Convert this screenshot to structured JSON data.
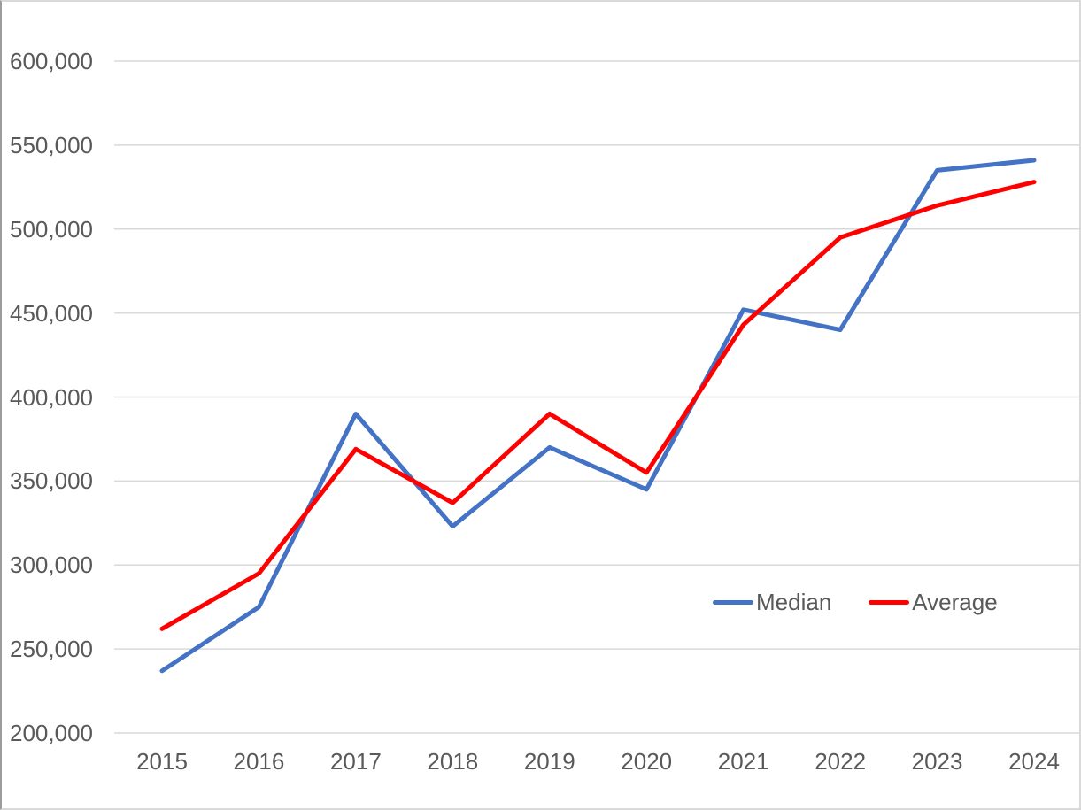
{
  "chart_data": {
    "type": "line",
    "categories": [
      "2015",
      "2016",
      "2017",
      "2018",
      "2019",
      "2020",
      "2021",
      "2022",
      "2023",
      "2024"
    ],
    "series": [
      {
        "name": "Median",
        "color": "#4472C4",
        "values": [
          237000,
          275000,
          390000,
          323000,
          370000,
          345000,
          452000,
          440000,
          535000,
          541000
        ]
      },
      {
        "name": "Average",
        "color": "#FF0000",
        "values": [
          262000,
          295000,
          369000,
          337000,
          390000,
          355000,
          443000,
          495000,
          514000,
          528000
        ]
      }
    ],
    "title": "",
    "xlabel": "",
    "ylabel": "",
    "ylim": [
      200000,
      600000
    ],
    "ytick_step": 50000,
    "ytick_labels": [
      "200,000",
      "250,000",
      "300,000",
      "350,000",
      "400,000",
      "450,000",
      "500,000",
      "550,000",
      "600,000"
    ],
    "grid": true,
    "gridline_color": "#d9d9d9",
    "axis_text_color": "#595959",
    "legend_position": "inside-bottom-right"
  },
  "legend": {
    "median_label": "Median",
    "average_label": "Average"
  }
}
